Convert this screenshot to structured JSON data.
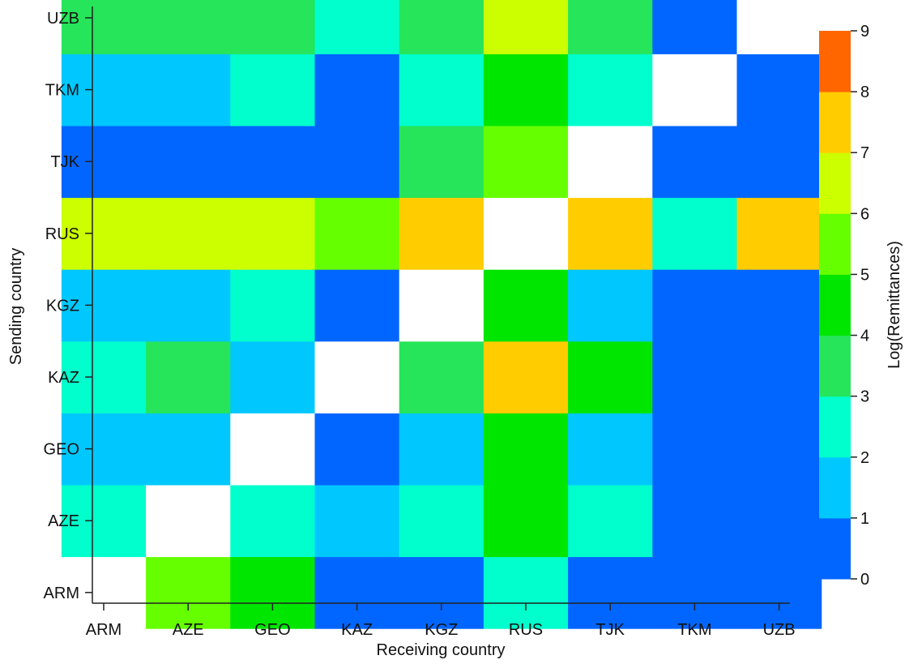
{
  "chart_data": {
    "type": "heatmap",
    "xlabel": "Receiving country",
    "ylabel": "Sending country",
    "x_categories": [
      "ARM",
      "AZE",
      "GEO",
      "KAZ",
      "KGZ",
      "RUS",
      "TJK",
      "TKM",
      "UZB"
    ],
    "y_categories": [
      "ARM",
      "AZE",
      "GEO",
      "KAZ",
      "KGZ",
      "RUS",
      "TJK",
      "TKM",
      "UZB"
    ],
    "value_note": "Matrix rows follow y_categories (sending), columns follow x_categories (receiving); null = missing/white. Values are bin midpoints of Log(Remittances).",
    "values": [
      [
        null,
        5.5,
        4.5,
        0.5,
        0.5,
        2.5,
        0.5,
        0.5,
        0.5
      ],
      [
        2.5,
        null,
        2.5,
        1.5,
        2.5,
        4.5,
        2.5,
        0.5,
        0.5
      ],
      [
        1.5,
        1.5,
        null,
        0.5,
        1.5,
        4.5,
        1.5,
        0.5,
        0.5
      ],
      [
        2.5,
        3.5,
        1.5,
        null,
        3.5,
        7.5,
        4.5,
        0.5,
        0.5
      ],
      [
        1.5,
        1.5,
        2.5,
        0.5,
        null,
        4.5,
        1.5,
        0.5,
        0.5
      ],
      [
        6.5,
        6.5,
        6.5,
        5.5,
        7.5,
        null,
        7.5,
        2.5,
        7.5
      ],
      [
        0.5,
        0.5,
        0.5,
        0.5,
        3.5,
        5.5,
        null,
        0.5,
        0.5
      ],
      [
        1.5,
        1.5,
        2.5,
        0.5,
        2.5,
        4.5,
        2.5,
        null,
        0.5
      ],
      [
        3.5,
        3.5,
        3.5,
        2.5,
        3.5,
        6.5,
        3.5,
        0.5,
        null
      ]
    ],
    "colorbar": {
      "label": "Log(Remittances)",
      "range": [
        0,
        9
      ],
      "ticks": [
        "0",
        "1",
        "2",
        "3",
        "4",
        "5",
        "6",
        "7",
        "8",
        "9"
      ],
      "bins": [
        {
          "from": 0,
          "to": 1,
          "color": "#0066ff"
        },
        {
          "from": 1,
          "to": 2,
          "color": "#00c8ff"
        },
        {
          "from": 2,
          "to": 3,
          "color": "#00ffcc"
        },
        {
          "from": 3,
          "to": 4,
          "color": "#26e55a"
        },
        {
          "from": 4,
          "to": 5,
          "color": "#00e600"
        },
        {
          "from": 5,
          "to": 6,
          "color": "#66ff00"
        },
        {
          "from": 6,
          "to": 7,
          "color": "#ccff00"
        },
        {
          "from": 7,
          "to": 8,
          "color": "#ffcc00"
        },
        {
          "from": 8,
          "to": 9,
          "color": "#ff6600"
        }
      ]
    },
    "missing_color": "#ffffff",
    "grid": false
  }
}
